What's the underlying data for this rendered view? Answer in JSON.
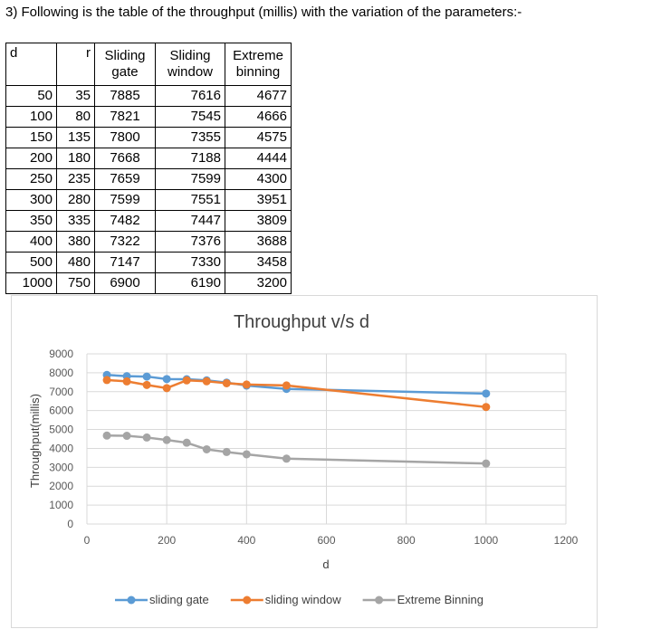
{
  "heading": "3) Following is the table of the throughput (millis) with the variation of the parameters:-",
  "table": {
    "headers": {
      "d": "d",
      "r": "r",
      "sg_line1": "Sliding",
      "sg_line2": "gate",
      "sw_line1": "Sliding",
      "sw_line2": "window",
      "eb_line1": "Extreme",
      "eb_line2": "binning"
    },
    "rows": [
      [
        "50",
        "35",
        "7885",
        "7616",
        "4677"
      ],
      [
        "100",
        "80",
        "7821",
        "7545",
        "4666"
      ],
      [
        "150",
        "135",
        "7800",
        "7355",
        "4575"
      ],
      [
        "200",
        "180",
        "7668",
        "7188",
        "4444"
      ],
      [
        "250",
        "235",
        "7659",
        "7599",
        "4300"
      ],
      [
        "300",
        "280",
        "7599",
        "7551",
        "3951"
      ],
      [
        "350",
        "335",
        "7482",
        "7447",
        "3809"
      ],
      [
        "400",
        "380",
        "7322",
        "7376",
        "3688"
      ],
      [
        "500",
        "480",
        "7147",
        "7330",
        "3458"
      ],
      [
        "1000",
        "750",
        "6900",
        "6190",
        "3200"
      ]
    ]
  },
  "chart_data": {
    "type": "line",
    "title": "Throughput v/s d",
    "xlabel": "d",
    "ylabel": "Throughput(millis)",
    "xlim": [
      0,
      1200
    ],
    "ylim": [
      0,
      9000
    ],
    "x_ticks": [
      "0",
      "200",
      "400",
      "600",
      "800",
      "1000",
      "1200"
    ],
    "y_ticks": [
      "0",
      "1000",
      "2000",
      "3000",
      "4000",
      "5000",
      "6000",
      "7000",
      "8000",
      "9000"
    ],
    "x_tick_values": [
      0,
      200,
      400,
      600,
      800,
      1000,
      1200
    ],
    "y_tick_values": [
      0,
      1000,
      2000,
      3000,
      4000,
      5000,
      6000,
      7000,
      8000,
      9000
    ],
    "grid": true,
    "legend_position": "bottom",
    "x": [
      50,
      100,
      150,
      200,
      250,
      300,
      350,
      400,
      500,
      1000
    ],
    "series": [
      {
        "name": "sliding gate",
        "color": "#5b9bd5",
        "values": [
          7885,
          7821,
          7800,
          7668,
          7659,
          7599,
          7482,
          7322,
          7147,
          6900
        ]
      },
      {
        "name": "sliding window",
        "color": "#ed7d31",
        "values": [
          7616,
          7545,
          7355,
          7188,
          7599,
          7551,
          7447,
          7376,
          7330,
          6190
        ]
      },
      {
        "name": "Extreme Binning",
        "color": "#a5a5a5",
        "values": [
          4677,
          4666,
          4575,
          4444,
          4300,
          3951,
          3809,
          3688,
          3458,
          3200
        ]
      }
    ]
  }
}
